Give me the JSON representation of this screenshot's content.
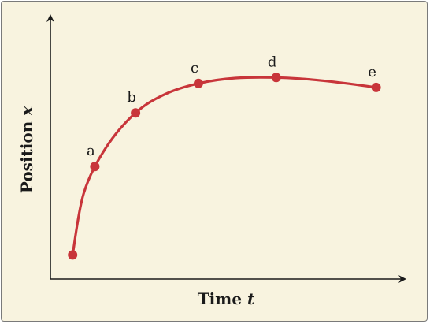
{
  "chart_data": {
    "type": "line",
    "title": "",
    "xlabel": "Time",
    "xlabel_var": "t",
    "ylabel": "Position",
    "ylabel_var": "x",
    "grid": false,
    "curve_color": "#c8353a",
    "axis_color": "#1a1a1a",
    "background_color": "#f8f3df",
    "x_ticks": [],
    "y_ticks": [],
    "xlim": [
      0,
      10
    ],
    "ylim": [
      0,
      10
    ],
    "curve": [
      [
        0.6,
        0.9
      ],
      [
        0.9,
        3.2
      ],
      [
        1.5,
        4.9
      ],
      [
        2.3,
        6.2
      ],
      [
        3.1,
        6.9
      ],
      [
        4.0,
        7.3
      ],
      [
        5.0,
        7.5
      ],
      [
        6.1,
        7.52
      ],
      [
        7.0,
        7.45
      ],
      [
        8.0,
        7.3
      ],
      [
        8.8,
        7.15
      ]
    ],
    "points": [
      {
        "label": "",
        "x": 0.6,
        "y": 0.9
      },
      {
        "label": "a",
        "x": 1.2,
        "y": 4.2
      },
      {
        "label": "b",
        "x": 2.3,
        "y": 6.2
      },
      {
        "label": "c",
        "x": 4.0,
        "y": 7.3
      },
      {
        "label": "d",
        "x": 6.1,
        "y": 7.52
      },
      {
        "label": "e",
        "x": 8.8,
        "y": 7.15
      }
    ]
  }
}
